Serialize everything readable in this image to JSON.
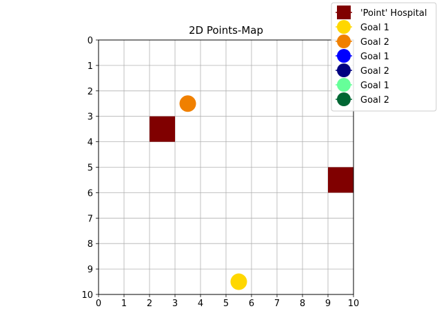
{
  "chart_data": {
    "type": "scatter",
    "title": "2D Points-Map",
    "xlabel": "",
    "ylabel": "",
    "xlim": [
      0,
      10
    ],
    "ylim": [
      0,
      10
    ],
    "y_inverted": true,
    "xticks": [
      "0",
      "1",
      "2",
      "3",
      "4",
      "5",
      "6",
      "7",
      "8",
      "9",
      "10"
    ],
    "yticks": [
      "0",
      "1",
      "2",
      "3",
      "4",
      "5",
      "6",
      "7",
      "8",
      "9",
      "10"
    ],
    "grid": true,
    "legend_position": "top-right outside",
    "squares": [
      {
        "x": 2.5,
        "y": 3.5,
        "color": "#800000"
      },
      {
        "x": 9.5,
        "y": 5.5,
        "color": "#800000"
      }
    ],
    "series": [
      {
        "name": "'Point' Hospital",
        "marker": "square",
        "color": "#800000",
        "points": [
          [
            2.5,
            3.5
          ],
          [
            9.5,
            5.5
          ]
        ]
      },
      {
        "name": "Goal 1",
        "marker": "circle",
        "color": "#ffd700",
        "points": [
          [
            5.5,
            9.5
          ]
        ]
      },
      {
        "name": "Goal 2",
        "marker": "circle",
        "color": "#f08000",
        "points": [
          [
            3.5,
            2.5
          ]
        ]
      },
      {
        "name": "Goal 1",
        "marker": "circle",
        "color": "#0000ff",
        "points": []
      },
      {
        "name": "Goal 2",
        "marker": "circle",
        "color": "#000080",
        "points": []
      },
      {
        "name": "Goal 1",
        "marker": "circle",
        "color": "#66ff99",
        "points": []
      },
      {
        "name": "Goal 2",
        "marker": "circle",
        "color": "#006633",
        "points": []
      }
    ]
  }
}
